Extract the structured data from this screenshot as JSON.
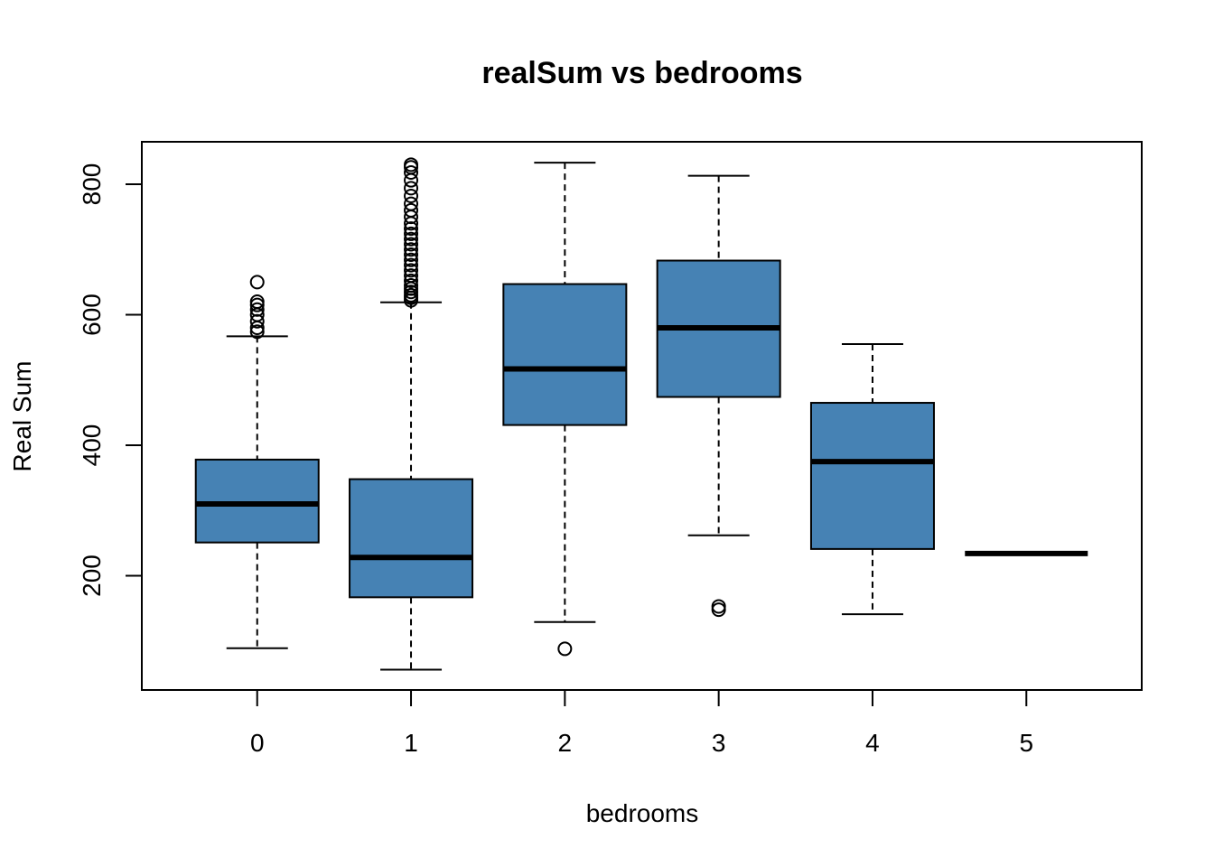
{
  "chart_data": {
    "type": "boxplot",
    "title": "realSum vs bedrooms",
    "xlabel": "bedrooms",
    "ylabel": "Real Sum",
    "ylim": [
      40,
      860
    ],
    "yticks": [
      200,
      400,
      600,
      800
    ],
    "box_color": "#4682B4",
    "categories": [
      "0",
      "1",
      "2",
      "3",
      "4",
      "5"
    ],
    "boxes": [
      {
        "category": "0",
        "whisker_low": 89,
        "q1": 251,
        "median": 310,
        "q3": 378,
        "whisker_high": 567,
        "outliers": [
          574,
          580,
          590,
          600,
          608,
          615,
          620,
          650
        ]
      },
      {
        "category": "1",
        "whisker_low": 56,
        "q1": 167,
        "median": 228,
        "q3": 348,
        "whisker_high": 619,
        "outliers": [
          622,
          626,
          630,
          635,
          640,
          645,
          652,
          660,
          668,
          676,
          684,
          692,
          700,
          708,
          716,
          724,
          732,
          740,
          750,
          760,
          770,
          782,
          794,
          806,
          818,
          826,
          830
        ]
      },
      {
        "category": "2",
        "whisker_low": 129,
        "q1": 431,
        "median": 517,
        "q3": 647,
        "whisker_high": 833,
        "outliers": [
          88
        ]
      },
      {
        "category": "3",
        "whisker_low": 262,
        "q1": 474,
        "median": 580,
        "q3": 683,
        "whisker_high": 813,
        "outliers": [
          148,
          153
        ]
      },
      {
        "category": "4",
        "whisker_low": 141,
        "q1": 241,
        "median": 375,
        "q3": 465,
        "whisker_high": 555,
        "outliers": []
      },
      {
        "category": "5",
        "whisker_low": 234,
        "q1": 234,
        "median": 234,
        "q3": 234,
        "whisker_high": 234,
        "outliers": []
      }
    ]
  }
}
